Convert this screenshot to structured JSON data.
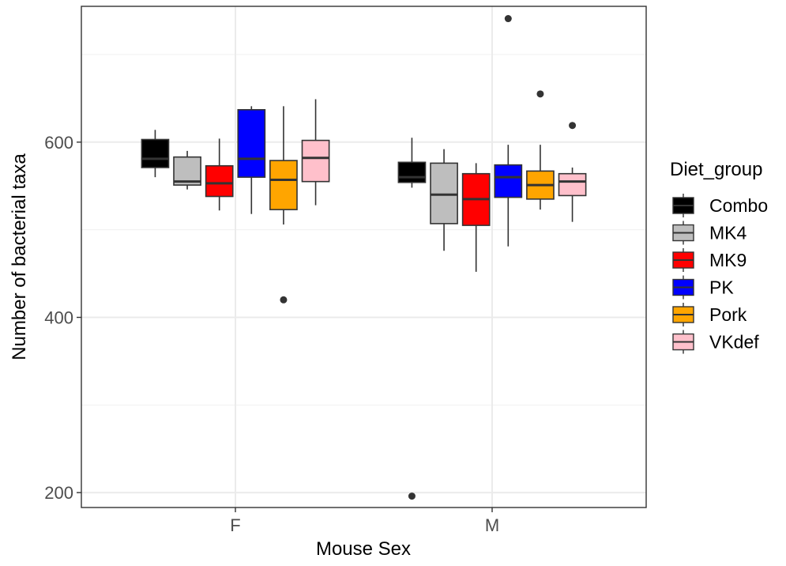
{
  "chart_data": {
    "type": "boxplot",
    "title": "",
    "xlabel": "Mouse Sex",
    "ylabel": "Number of bacterial taxa",
    "ylim": [
      183,
      755
    ],
    "yticks": [
      200,
      400,
      600
    ],
    "categories": [
      "F",
      "M"
    ],
    "grid": true,
    "legend": {
      "title": "Diet_group",
      "position": "right"
    },
    "series": [
      {
        "name": "Combo",
        "color": "#000000",
        "boxes": [
          {
            "category": "F",
            "min": 560,
            "q1": 571,
            "median": 581,
            "q3": 603,
            "max": 614,
            "outliers": []
          },
          {
            "category": "M",
            "min": 548,
            "q1": 554,
            "median": 560,
            "q3": 577,
            "max": 605,
            "outliers": [
              196
            ]
          }
        ]
      },
      {
        "name": "MK4",
        "color": "#bebebe",
        "boxes": [
          {
            "category": "F",
            "min": 546,
            "q1": 551,
            "median": 555,
            "q3": 583,
            "max": 590,
            "outliers": []
          },
          {
            "category": "M",
            "min": 476,
            "q1": 507,
            "median": 540,
            "q3": 576,
            "max": 592,
            "outliers": []
          }
        ]
      },
      {
        "name": "MK9",
        "color": "#ff0000",
        "boxes": [
          {
            "category": "F",
            "min": 522,
            "q1": 538,
            "median": 553,
            "q3": 573,
            "max": 604,
            "outliers": []
          },
          {
            "category": "M",
            "min": 452,
            "q1": 505,
            "median": 535,
            "q3": 564,
            "max": 576,
            "outliers": []
          }
        ]
      },
      {
        "name": "PK",
        "color": "#0000ff",
        "boxes": [
          {
            "category": "F",
            "min": 518,
            "q1": 560,
            "median": 581,
            "q3": 637,
            "max": 641,
            "outliers": []
          },
          {
            "category": "M",
            "min": 481,
            "q1": 537,
            "median": 560,
            "q3": 574,
            "max": 597,
            "outliers": [
              741
            ]
          }
        ]
      },
      {
        "name": "Pork",
        "color": "#ffa500",
        "boxes": [
          {
            "category": "F",
            "min": 506,
            "q1": 523,
            "median": 557,
            "q3": 579,
            "max": 641,
            "outliers": [
              420
            ]
          },
          {
            "category": "M",
            "min": 523,
            "q1": 535,
            "median": 551,
            "q3": 567,
            "max": 597,
            "outliers": [
              655
            ]
          }
        ]
      },
      {
        "name": "VKdef",
        "color": "#ffc0cb",
        "boxes": [
          {
            "category": "F",
            "min": 528,
            "q1": 555,
            "median": 582,
            "q3": 602,
            "max": 649,
            "outliers": []
          },
          {
            "category": "M",
            "min": 509,
            "q1": 539,
            "median": 555,
            "q3": 564,
            "max": 571,
            "outliers": [
              619
            ]
          }
        ]
      }
    ]
  }
}
